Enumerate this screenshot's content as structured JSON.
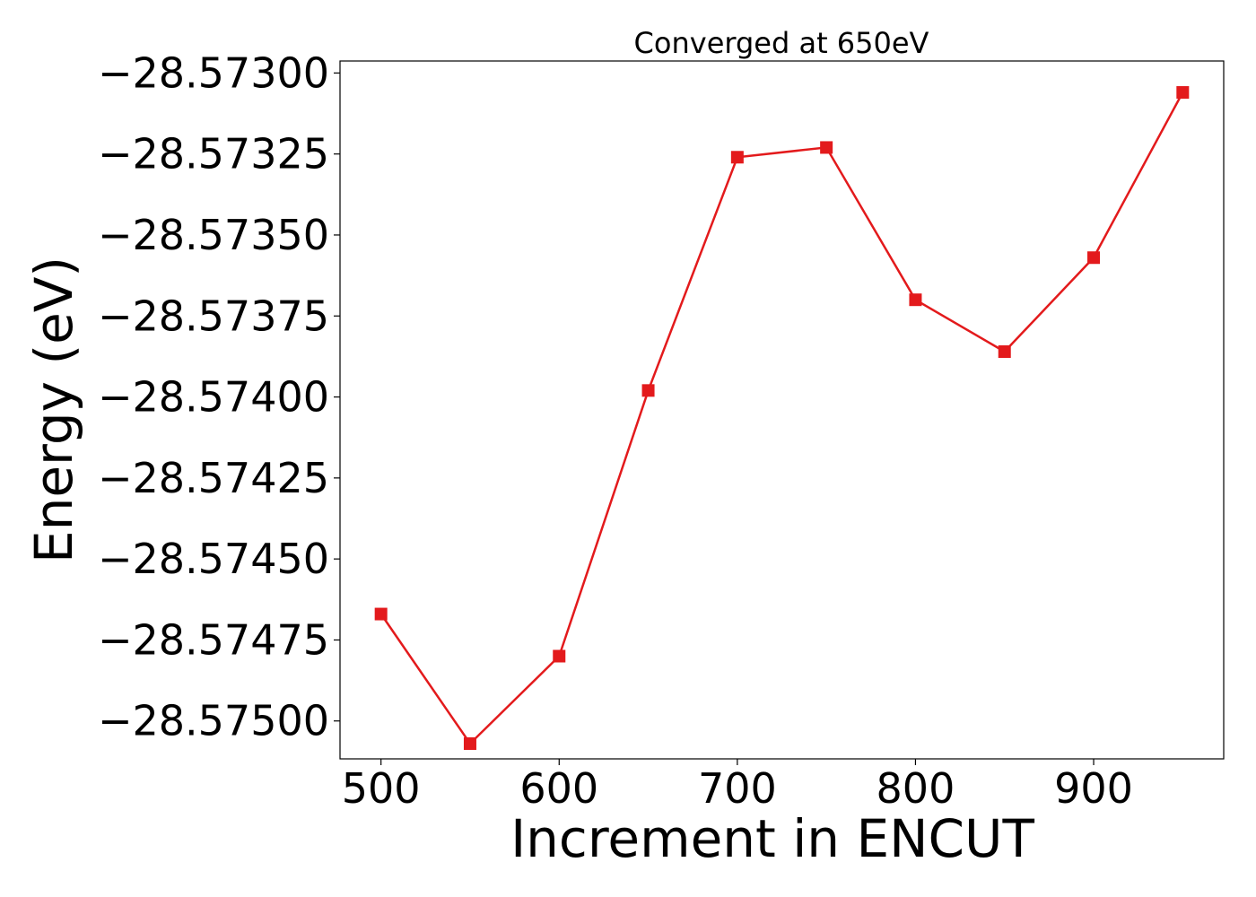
{
  "chart_data": {
    "type": "line",
    "title": "Converged at 650eV",
    "xlabel": "Increment in ENCUT",
    "ylabel": "Energy (eV)",
    "x": [
      500,
      550,
      600,
      650,
      700,
      750,
      800,
      850,
      900,
      950
    ],
    "series": [
      {
        "values": [
          -28.57467,
          -28.57507,
          -28.5748,
          -28.57398,
          -28.57326,
          -28.57323,
          -28.5737,
          -28.57386,
          -28.57357,
          -28.57306
        ],
        "color": "#e31a1c",
        "marker": "square"
      }
    ],
    "xticks": [
      500,
      600,
      700,
      800,
      900
    ],
    "xtick_labels": [
      "500",
      "600",
      "700",
      "800",
      "900"
    ],
    "yticks": [
      -28.575,
      -28.57475,
      -28.5745,
      -28.57425,
      -28.574,
      -28.57375,
      -28.5735,
      -28.57325,
      -28.573
    ],
    "ytick_labels": [
      "−28.57500",
      "−28.57475",
      "−28.57450",
      "−28.57425",
      "−28.57400",
      "−28.57375",
      "−28.57350",
      "−28.57325",
      "−28.57300"
    ],
    "xlim": [
      477,
      973
    ],
    "ylim": [
      -28.575117,
      -28.572963
    ],
    "grid": false,
    "legend": "none"
  }
}
